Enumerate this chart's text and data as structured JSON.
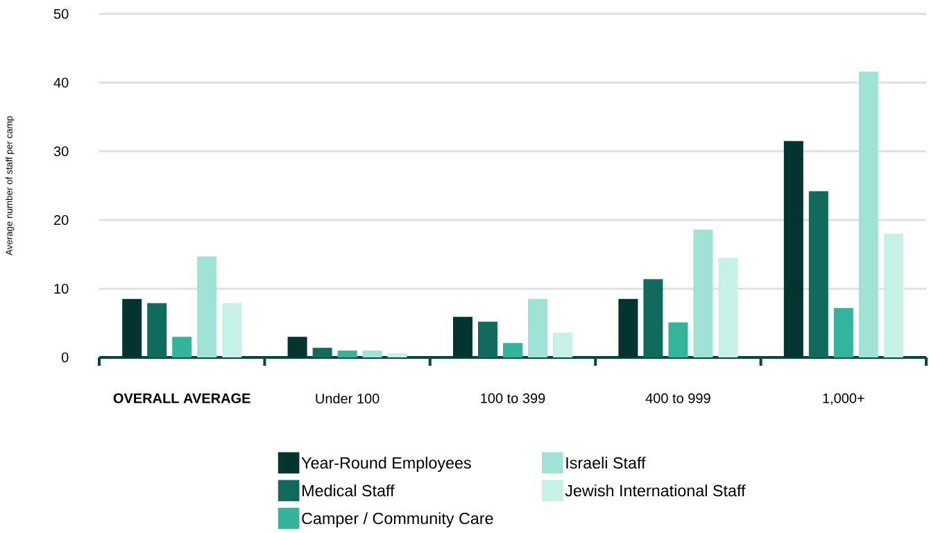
{
  "chart_data": {
    "type": "bar",
    "ylabel": "Average number of staff per camp",
    "categories": [
      "OVERALL AVERAGE",
      "Under 100",
      "100 to 399",
      "400 to 999",
      "1,000+"
    ],
    "series": [
      {
        "name": "Year-Round Employees",
        "color": "#04342f",
        "values": [
          8.5,
          3.0,
          5.9,
          8.5,
          31.5
        ]
      },
      {
        "name": "Medical Staff",
        "color": "#106b5c",
        "values": [
          7.9,
          1.4,
          5.2,
          11.4,
          24.2
        ]
      },
      {
        "name": "Camper / Community Care",
        "color": "#34b59b",
        "values": [
          3.0,
          1.0,
          2.1,
          5.1,
          7.2
        ]
      },
      {
        "name": "Israeli Staff",
        "color": "#a0e3d6",
        "values": [
          14.7,
          1.0,
          8.5,
          18.6,
          41.6
        ]
      },
      {
        "name": "Jewish International Staff",
        "color": "#c6f1e6",
        "values": [
          7.9,
          0.6,
          3.6,
          14.5,
          18.0
        ]
      }
    ],
    "ylim": [
      0,
      50
    ],
    "yticks": [
      0,
      10,
      20,
      30,
      40,
      50
    ],
    "grid": "y",
    "legend": "bottom"
  }
}
